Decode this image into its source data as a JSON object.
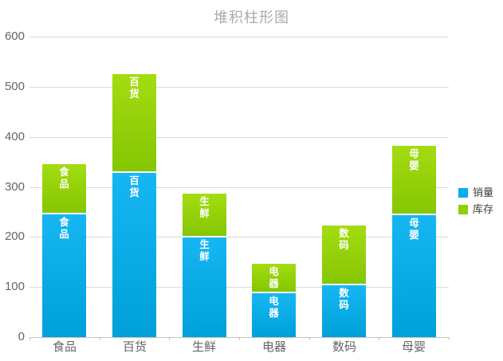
{
  "title": "堆积柱形图",
  "chart_data": {
    "type": "bar",
    "stacked": true,
    "title": "堆积柱形图",
    "categories": [
      "食品",
      "百货",
      "生鲜",
      "电器",
      "数码",
      "母婴"
    ],
    "series": [
      {
        "name": "销量",
        "color": "#00aeef",
        "values": [
          245,
          328,
          200,
          87,
          103,
          243
        ]
      },
      {
        "name": "库存",
        "color": "#8fd000",
        "values": [
          100,
          197,
          87,
          59,
          120,
          139
        ]
      }
    ],
    "stack_totals": [
      345,
      525,
      287,
      146,
      223,
      382
    ],
    "segment_labels": "category name shown in white inside every segment",
    "xlabel": "",
    "ylabel": "",
    "ylim": [
      0,
      600
    ],
    "yticks": [
      0,
      100,
      200,
      300,
      400,
      500,
      600
    ],
    "grid": true,
    "legend_position": "right"
  },
  "colors": {
    "sales_top": "#16b6f2",
    "sales_bottom": "#00a0da",
    "stock_top": "#a4dc10",
    "stock_bottom": "#85c603",
    "gridline": "#d9d9d9",
    "axis": "#c3c3c3",
    "axis_text": "#656565",
    "title_text": "#ababab",
    "legend_text": "#404040"
  }
}
